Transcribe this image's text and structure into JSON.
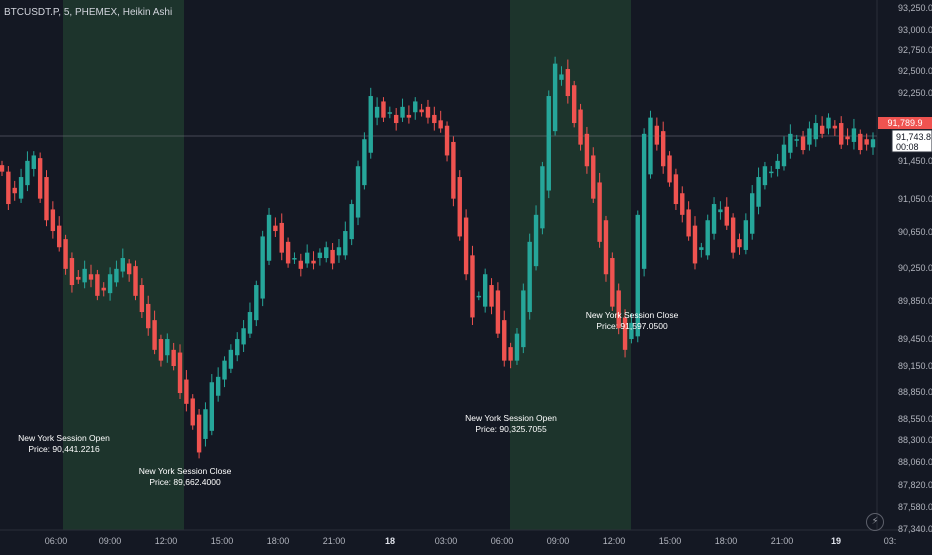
{
  "header": {
    "title": "BTCUSDT.P, 5, PHEMEX, Heikin Ashi"
  },
  "chart_data": {
    "type": "candlestick",
    "symbol": "BTCUSDT.P",
    "interval": "5",
    "exchange": "PHEMEX",
    "style": "Heikin Ashi",
    "y_ticks": [
      "93,250.0",
      "93,000.0",
      "92,750.0",
      "92,500.0",
      "92,250.0",
      "91,450.0",
      "91,050.0",
      "90,650.0",
      "90,250.0",
      "89,850.0",
      "89,450.0",
      "89,150.0",
      "88,850.0",
      "88,550.0",
      "88,300.0",
      "88,060.0",
      "87,820.0",
      "87,580.0",
      "87,340.0"
    ],
    "x_ticks": [
      "06:00",
      "09:00",
      "12:00",
      "15:00",
      "18:00",
      "21:00",
      "18",
      "03:00",
      "06:00",
      "09:00",
      "12:00",
      "15:00",
      "18:00",
      "21:00",
      "19",
      "03:"
    ],
    "price_labels": {
      "last_price": "91,789.9",
      "current_price": "91,743.8",
      "countdown": "00:08"
    },
    "sessions": [
      {
        "open_label": "New York Session Open",
        "open_price": "Price: 90,441.2216",
        "close_label": "New York Session Close",
        "close_price": "Price: 89,662.4000"
      },
      {
        "open_label": "New York Session Open",
        "open_price": "Price: 90,325.7055",
        "close_label": "New York Session Close",
        "close_price": "Price: 91,597.0500"
      }
    ],
    "colors": {
      "up": "#26a69a",
      "down": "#ef5350",
      "session_fill": "#1f3a2e",
      "background": "#141823"
    },
    "close_series": [
      91450,
      91150,
      91250,
      91400,
      91550,
      91600,
      91200,
      91000,
      90900,
      90750,
      90550,
      90400,
      90450,
      90550,
      90450,
      90300,
      90350,
      90500,
      90550,
      90650,
      90500,
      90300,
      90150,
      90000,
      89800,
      89700,
      89900,
      89650,
      89400,
      89300,
      89100,
      88850,
      89250,
      89500,
      89550,
      89700,
      89800,
      89900,
      90000,
      90150,
      90400,
      90850,
      91050,
      90900,
      90700,
      90600,
      90650,
      90550,
      90700,
      90600,
      90700,
      90750,
      90600,
      90750,
      90900,
      91150,
      91500,
      91750,
      92150,
      92050,
      91950,
      92000,
      91900,
      92050,
      91950,
      92100,
      92000,
      91950,
      91900,
      91850,
      91600,
      91200,
      90850,
      90500,
      90100,
      90300,
      90500,
      90200,
      89950,
      89700,
      89700,
      89950,
      90350,
      90800,
      91050,
      91500,
      92150,
      92450,
      92350,
      92150,
      91900,
      91700,
      91500,
      91200,
      90800,
      90500,
      90200,
      90000,
      89800,
      90050,
      91050,
      91800,
      91950,
      91700,
      91500,
      91350,
      91150,
      91050,
      90850,
      90600,
      90750,
      91000,
      91150,
      91100,
      90950,
      90700,
      90750,
      91000,
      91250,
      91400,
      91500,
      91450,
      91550,
      91700,
      91800,
      91750,
      91650,
      91850,
      91900,
      91800,
      91950,
      91850,
      91700,
      91750,
      91850,
      91650,
      91700,
      91750
    ]
  }
}
